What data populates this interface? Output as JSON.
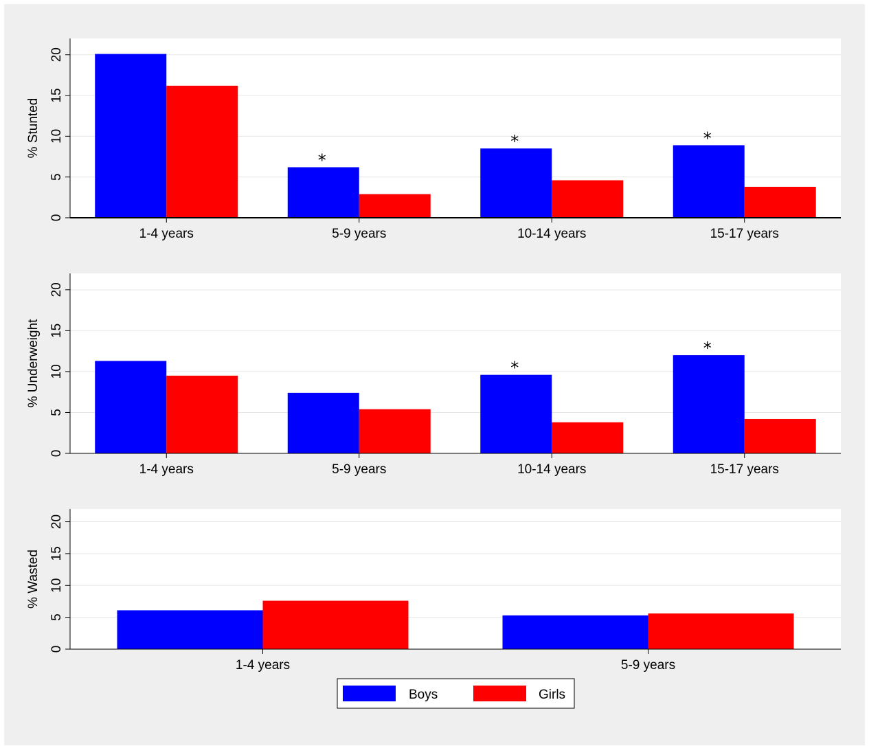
{
  "colors": {
    "boys": "#0000ff",
    "girls": "#ff0000",
    "background": "#efefef",
    "plot_background": "#ffffff"
  },
  "legend": [
    {
      "name": "Boys",
      "color": "#0000ff"
    },
    {
      "name": "Girls",
      "color": "#ff0000"
    }
  ],
  "chart_data": [
    {
      "type": "bar",
      "ylabel": "% Stunted",
      "ylim": [
        0,
        22
      ],
      "yticks": [
        0,
        5,
        10,
        15,
        20
      ],
      "grid": true,
      "categories": [
        "1-4 years",
        "5-9 years",
        "10-14 years",
        "15-17 years"
      ],
      "series": [
        {
          "name": "Boys",
          "values": [
            20.1,
            6.2,
            8.5,
            8.9
          ]
        },
        {
          "name": "Girls",
          "values": [
            16.2,
            2.9,
            4.6,
            3.8
          ]
        }
      ],
      "annotations": [
        {
          "category": "5-9 years",
          "series": "Boys",
          "text": "*"
        },
        {
          "category": "10-14 years",
          "series": "Boys",
          "text": "*"
        },
        {
          "category": "15-17 years",
          "series": "Boys",
          "text": "*"
        }
      ]
    },
    {
      "type": "bar",
      "ylabel": "% Underweight",
      "ylim": [
        0,
        22
      ],
      "yticks": [
        0,
        5,
        10,
        15,
        20
      ],
      "grid": true,
      "categories": [
        "1-4 years",
        "5-9 years",
        "10-14 years",
        "15-17 years"
      ],
      "series": [
        {
          "name": "Boys",
          "values": [
            11.3,
            7.4,
            9.6,
            12.0
          ]
        },
        {
          "name": "Girls",
          "values": [
            9.5,
            5.4,
            3.8,
            4.2
          ]
        }
      ],
      "annotations": [
        {
          "category": "10-14 years",
          "series": "Boys",
          "text": "*"
        },
        {
          "category": "15-17 years",
          "series": "Boys",
          "text": "*"
        }
      ]
    },
    {
      "type": "bar",
      "ylabel": "% Wasted",
      "ylim": [
        0,
        22
      ],
      "yticks": [
        0,
        5,
        10,
        15,
        20
      ],
      "grid": true,
      "categories": [
        "1-4 years",
        "5-9 years"
      ],
      "series": [
        {
          "name": "Boys",
          "values": [
            6.1,
            5.3
          ]
        },
        {
          "name": "Girls",
          "values": [
            7.6,
            5.6
          ]
        }
      ],
      "annotations": []
    }
  ]
}
